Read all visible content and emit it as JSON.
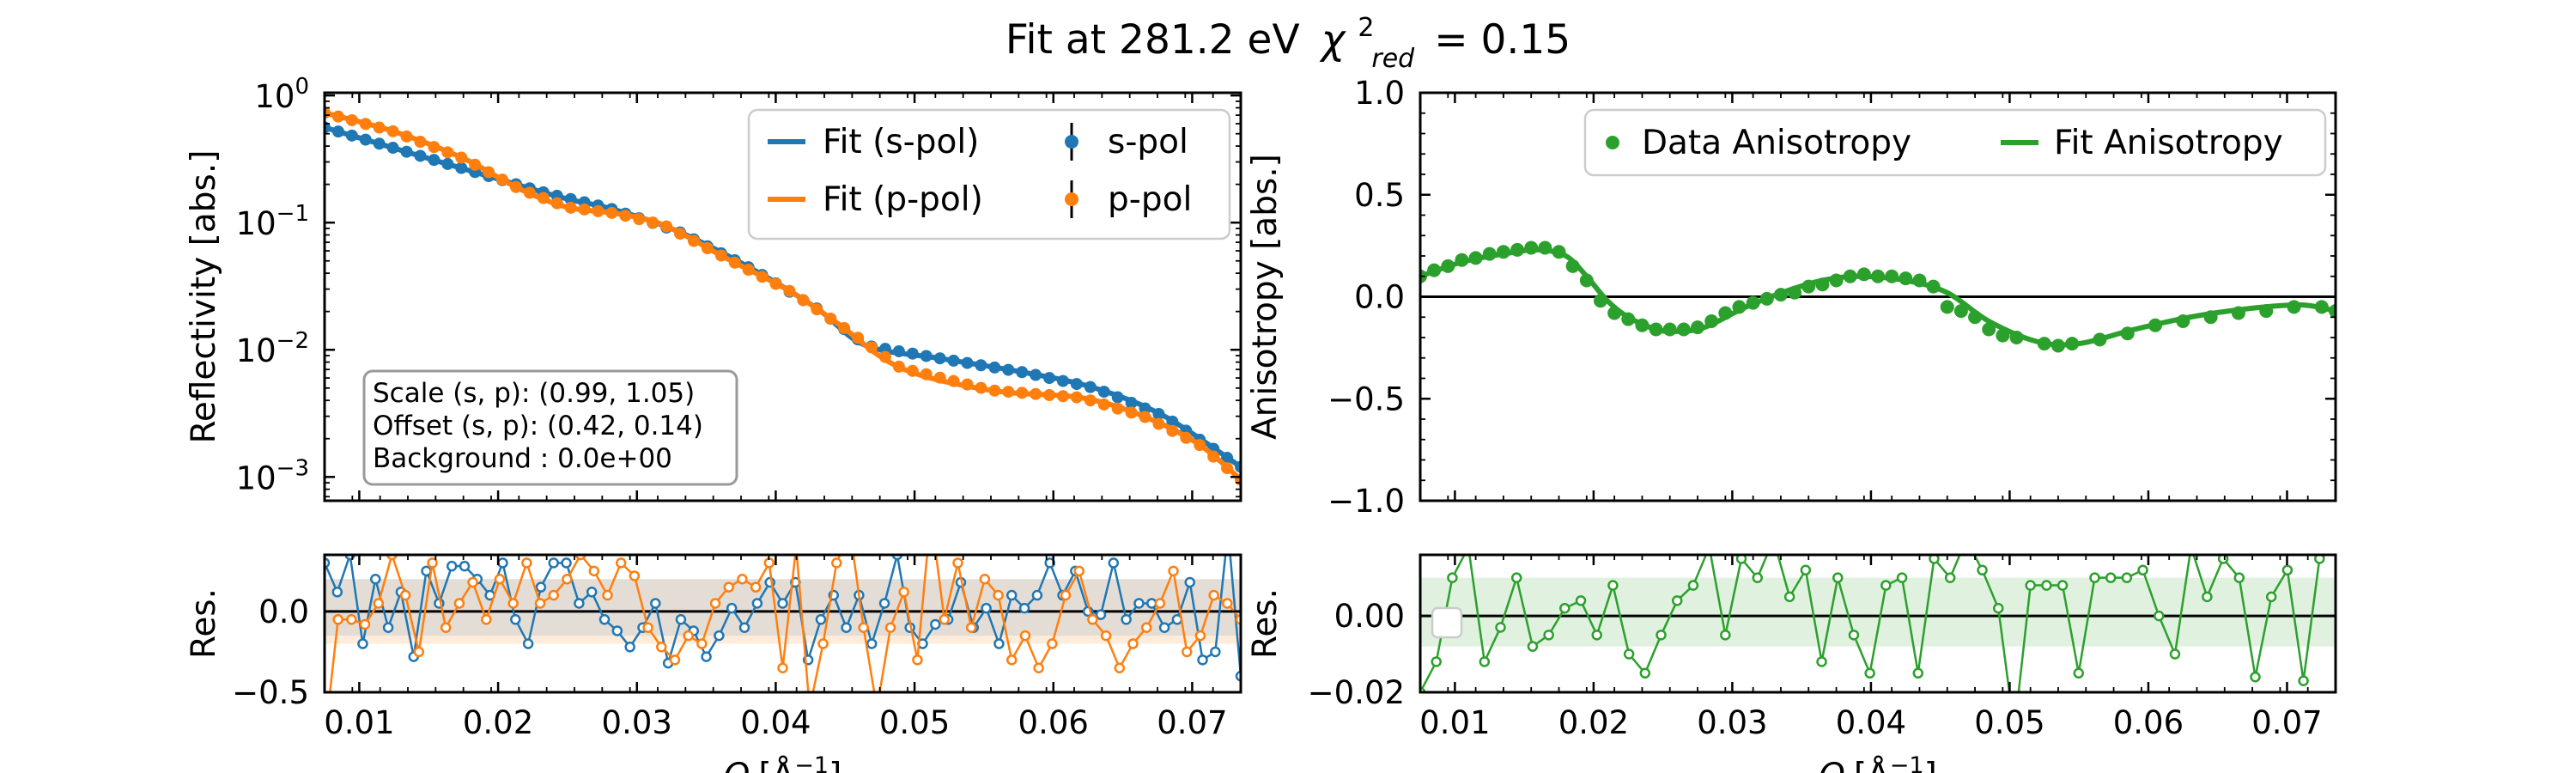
{
  "chart_data": {
    "title": "Fit at 281.2 eV",
    "title_chi_symbol": "χ",
    "title_chi_sup": "2",
    "title_chi_sub": "red",
    "title_chi_value": "= 0.15",
    "colors": {
      "s_pol": "#1f77b4",
      "p_pol": "#ff7f0e",
      "anisotropy": "#2ca02c"
    },
    "panels": [
      {
        "id": "reflectivity",
        "type": "scatter+line",
        "yscale": "log",
        "xlim": [
          0.0075,
          0.0735
        ],
        "ylim": [
          0.00065,
          1.05
        ],
        "ylabel": "Reflectivity [abs.]",
        "xticks": [
          "0.01",
          "0.02",
          "0.03",
          "0.04",
          "0.05",
          "0.06",
          "0.07"
        ],
        "yticks": [
          {
            "base": "10",
            "exp": "0",
            "value": 1
          },
          {
            "base": "10",
            "exp": "−1",
            "value": 0.1
          },
          {
            "base": "10",
            "exp": "−2",
            "value": 0.01
          },
          {
            "base": "10",
            "exp": "−3",
            "value": 0.001
          }
        ],
        "legend": {
          "placement": "upper right",
          "entries": [
            {
              "label": "Fit (s-pol)",
              "kind": "line",
              "series": "s_pol"
            },
            {
              "label": "s-pol",
              "kind": "errorbar",
              "series": "s_pol"
            },
            {
              "label": "Fit (p-pol)",
              "kind": "line",
              "series": "p_pol"
            },
            {
              "label": "p-pol",
              "kind": "errorbar",
              "series": "p_pol"
            }
          ]
        },
        "annotation": [
          "Scale (s, p): (0.99, 1.05)",
          "Offset (s, p): (0.42, 0.14)",
          "Background : 0.0e+00"
        ],
        "series": [
          {
            "name": "s-pol",
            "points": [
              [
                0.0075,
                0.56
              ],
              [
                0.0235,
                0.17
              ],
              [
                0.028,
                0.13
              ],
              [
                0.033,
                0.085
              ],
              [
                0.0385,
                0.042
              ],
              [
                0.043,
                0.021
              ],
              [
                0.0465,
                0.0108
              ],
              [
                0.052,
                0.0085
              ],
              [
                0.058,
                0.0066
              ],
              [
                0.063,
                0.005
              ],
              [
                0.068,
                0.003
              ],
              [
                0.0735,
                0.0012
              ]
            ]
          },
          {
            "name": "p-pol",
            "points": [
              [
                0.0075,
                0.73
              ],
              [
                0.0125,
                0.52
              ],
              [
                0.0175,
                0.32
              ],
              [
                0.0215,
                0.185
              ],
              [
                0.025,
                0.132
              ],
              [
                0.0285,
                0.118
              ],
              [
                0.032,
                0.095
              ],
              [
                0.0365,
                0.052
              ],
              [
                0.041,
                0.029
              ],
              [
                0.0445,
                0.016
              ],
              [
                0.049,
                0.0072
              ],
              [
                0.0555,
                0.0048
              ],
              [
                0.062,
                0.0042
              ],
              [
                0.0665,
                0.003
              ],
              [
                0.0705,
                0.0018
              ],
              [
                0.0735,
                0.00095
              ]
            ]
          }
        ]
      },
      {
        "id": "reflectivity_residuals",
        "type": "line",
        "xlim": [
          0.0075,
          0.0735
        ],
        "ylim": [
          -0.5,
          0.35
        ],
        "ylabel": "Res.",
        "xlabel_main": "Q",
        "xlabel_unit": "[Å",
        "xlabel_unit_exp": "−1",
        "xlabel_unit_end": "]",
        "xticks": [
          "0.01",
          "0.02",
          "0.03",
          "0.04",
          "0.05",
          "0.06",
          "0.07"
        ],
        "yticks": [
          "0.0",
          "−0.5"
        ],
        "band": {
          "s_pol": [
            -0.15,
            0.2
          ],
          "p_pol": [
            -0.2,
            0.2
          ]
        },
        "series": [
          {
            "name": "s-pol",
            "values": [
              0.3,
              0.12,
              0.35,
              -0.2,
              0.2,
              -0.1,
              0.12,
              -0.28,
              0.25,
              0.05,
              0.28,
              0.28,
              0.2,
              0.1,
              0.3,
              -0.05,
              -0.2,
              0.15,
              0.3,
              0.3,
              0.05,
              0.12,
              -0.05,
              -0.12,
              -0.22,
              -0.1,
              0.05,
              -0.32,
              -0.05,
              -0.12,
              -0.28,
              -0.15,
              0.02,
              -0.1,
              0.05,
              0.18,
              0.05,
              0.18,
              -0.3,
              -0.05,
              0.1,
              -0.1,
              0.1,
              -0.2,
              0.05,
              0.35,
              -0.1,
              -0.2,
              -0.08,
              -0.05,
              0.18,
              -0.1,
              0.02,
              -0.2,
              0.1,
              0.02,
              0.1,
              0.3,
              0.1,
              0.25,
              0.0,
              -0.02,
              0.3,
              -0.05,
              0.05,
              0.05,
              -0.1,
              -0.05,
              0.18,
              -0.3,
              -0.25,
              0.5,
              -0.4
            ]
          },
          {
            "name": "p-pol",
            "values": [
              -0.8,
              -0.05,
              -0.05,
              -0.08,
              0.05,
              0.35,
              0.1,
              -0.25,
              0.3,
              -0.1,
              0.05,
              0.18,
              -0.05,
              0.2,
              0.05,
              0.3,
              0.05,
              0.1,
              0.2,
              0.35,
              0.25,
              0.1,
              0.3,
              0.22,
              -0.1,
              -0.22,
              -0.3,
              -0.15,
              -0.2,
              0.05,
              0.15,
              0.2,
              0.15,
              0.3,
              -0.35,
              0.4,
              -0.6,
              -0.2,
              0.3,
              0.5,
              -0.1,
              -0.6,
              -0.1,
              0.12,
              -0.3,
              0.6,
              -0.05,
              0.3,
              -0.1,
              0.2,
              0.1,
              -0.3,
              -0.15,
              -0.35,
              -0.2,
              0.1,
              0.25,
              -0.05,
              -0.15,
              -0.35,
              -0.2,
              -0.1,
              0.05,
              0.25,
              -0.25,
              -0.15,
              0.1,
              0.05,
              -0.05
            ]
          }
        ]
      },
      {
        "id": "anisotropy",
        "type": "scatter+line",
        "xlim": [
          0.0075,
          0.0735
        ],
        "ylim": [
          -1.0,
          1.0
        ],
        "ylabel": "Anisotropy [abs.]",
        "xticks": [
          "0.01",
          "0.02",
          "0.03",
          "0.04",
          "0.05",
          "0.06",
          "0.07"
        ],
        "yticks": [
          "1.0",
          "0.5",
          "0.0",
          "−0.5",
          "−1.0"
        ],
        "legend": {
          "placement": "upper right",
          "entries": [
            {
              "label": "Data Anisotropy",
              "kind": "marker"
            },
            {
              "label": "Fit Anisotropy",
              "kind": "line"
            }
          ]
        },
        "fit_points": [
          [
            0.0075,
            0.1
          ],
          [
            0.0105,
            0.17
          ],
          [
            0.0135,
            0.21
          ],
          [
            0.016,
            0.23
          ],
          [
            0.018,
            0.2
          ],
          [
            0.0195,
            0.1
          ],
          [
            0.021,
            -0.02
          ],
          [
            0.0225,
            -0.1
          ],
          [
            0.0245,
            -0.16
          ],
          [
            0.026,
            -0.17
          ],
          [
            0.028,
            -0.15
          ],
          [
            0.031,
            -0.05
          ],
          [
            0.034,
            0.03
          ],
          [
            0.0365,
            0.08
          ],
          [
            0.039,
            0.1
          ],
          [
            0.0425,
            0.08
          ],
          [
            0.0455,
            0.02
          ],
          [
            0.0485,
            -0.12
          ],
          [
            0.052,
            -0.22
          ],
          [
            0.055,
            -0.23
          ],
          [
            0.059,
            -0.16
          ],
          [
            0.063,
            -0.1
          ],
          [
            0.067,
            -0.06
          ],
          [
            0.071,
            -0.04
          ],
          [
            0.0735,
            -0.07
          ]
        ],
        "data_points": [
          [
            0.0075,
            0.1
          ],
          [
            0.0085,
            0.13
          ],
          [
            0.0095,
            0.15
          ],
          [
            0.0105,
            0.18
          ],
          [
            0.0115,
            0.19
          ],
          [
            0.0125,
            0.21
          ],
          [
            0.0135,
            0.22
          ],
          [
            0.0145,
            0.23
          ],
          [
            0.0155,
            0.24
          ],
          [
            0.0165,
            0.24
          ],
          [
            0.0175,
            0.22
          ],
          [
            0.0185,
            0.15
          ],
          [
            0.0195,
            0.08
          ],
          [
            0.0205,
            -0.02
          ],
          [
            0.0215,
            -0.08
          ],
          [
            0.0225,
            -0.11
          ],
          [
            0.0235,
            -0.14
          ],
          [
            0.0245,
            -0.16
          ],
          [
            0.0255,
            -0.16
          ],
          [
            0.0265,
            -0.16
          ],
          [
            0.0275,
            -0.15
          ],
          [
            0.0285,
            -0.12
          ],
          [
            0.0295,
            -0.08
          ],
          [
            0.0305,
            -0.05
          ],
          [
            0.0315,
            -0.03
          ],
          [
            0.0325,
            -0.01
          ],
          [
            0.0335,
            0.01
          ],
          [
            0.0345,
            0.02
          ],
          [
            0.0355,
            0.05
          ],
          [
            0.0365,
            0.06
          ],
          [
            0.0375,
            0.08
          ],
          [
            0.0385,
            0.1
          ],
          [
            0.0395,
            0.11
          ],
          [
            0.0405,
            0.1
          ],
          [
            0.0415,
            0.1
          ],
          [
            0.0425,
            0.09
          ],
          [
            0.0435,
            0.08
          ],
          [
            0.0445,
            0.05
          ],
          [
            0.0455,
            -0.05
          ],
          [
            0.0465,
            -0.07
          ],
          [
            0.0475,
            -0.1
          ],
          [
            0.0485,
            -0.16
          ],
          [
            0.0495,
            -0.19
          ],
          [
            0.0505,
            -0.2
          ],
          [
            0.0525,
            -0.23
          ],
          [
            0.0535,
            -0.24
          ],
          [
            0.0545,
            -0.23
          ],
          [
            0.0565,
            -0.21
          ],
          [
            0.0585,
            -0.18
          ],
          [
            0.0605,
            -0.14
          ],
          [
            0.0625,
            -0.12
          ],
          [
            0.0645,
            -0.1
          ],
          [
            0.0665,
            -0.08
          ],
          [
            0.0685,
            -0.07
          ],
          [
            0.0705,
            -0.05
          ],
          [
            0.0725,
            -0.05
          ],
          [
            0.0735,
            -0.07
          ]
        ]
      },
      {
        "id": "anisotropy_residuals",
        "type": "line",
        "xlim": [
          0.0075,
          0.0735
        ],
        "ylim": [
          -0.02,
          0.016
        ],
        "ylabel": "Res.",
        "xlabel_main": "Q",
        "xlabel_unit": "[Å",
        "xlabel_unit_exp": "−1",
        "xlabel_unit_end": "]",
        "xticks": [
          "0.01",
          "0.02",
          "0.03",
          "0.04",
          "0.05",
          "0.06",
          "0.07"
        ],
        "yticks": [
          "0.00",
          "−0.02"
        ],
        "band": [
          -0.008,
          0.01
        ],
        "values": [
          -0.02,
          -0.012,
          0.01,
          0.018,
          -0.012,
          -0.003,
          0.01,
          -0.008,
          -0.005,
          0.002,
          0.004,
          -0.005,
          0.008,
          -0.01,
          -0.015,
          -0.005,
          0.004,
          0.008,
          0.018,
          -0.005,
          0.015,
          0.01,
          0.02,
          0.005,
          0.012,
          -0.012,
          0.01,
          -0.005,
          -0.015,
          0.008,
          0.01,
          -0.015,
          0.015,
          0.01,
          0.02,
          0.012,
          0.002,
          -0.03,
          0.008,
          0.008,
          0.008,
          -0.015,
          0.01,
          0.01,
          0.01,
          0.012,
          0.0,
          -0.01,
          0.018,
          0.005,
          0.015,
          0.01,
          -0.016,
          0.005,
          0.012,
          -0.017,
          0.015,
          0.018
        ]
      }
    ]
  }
}
